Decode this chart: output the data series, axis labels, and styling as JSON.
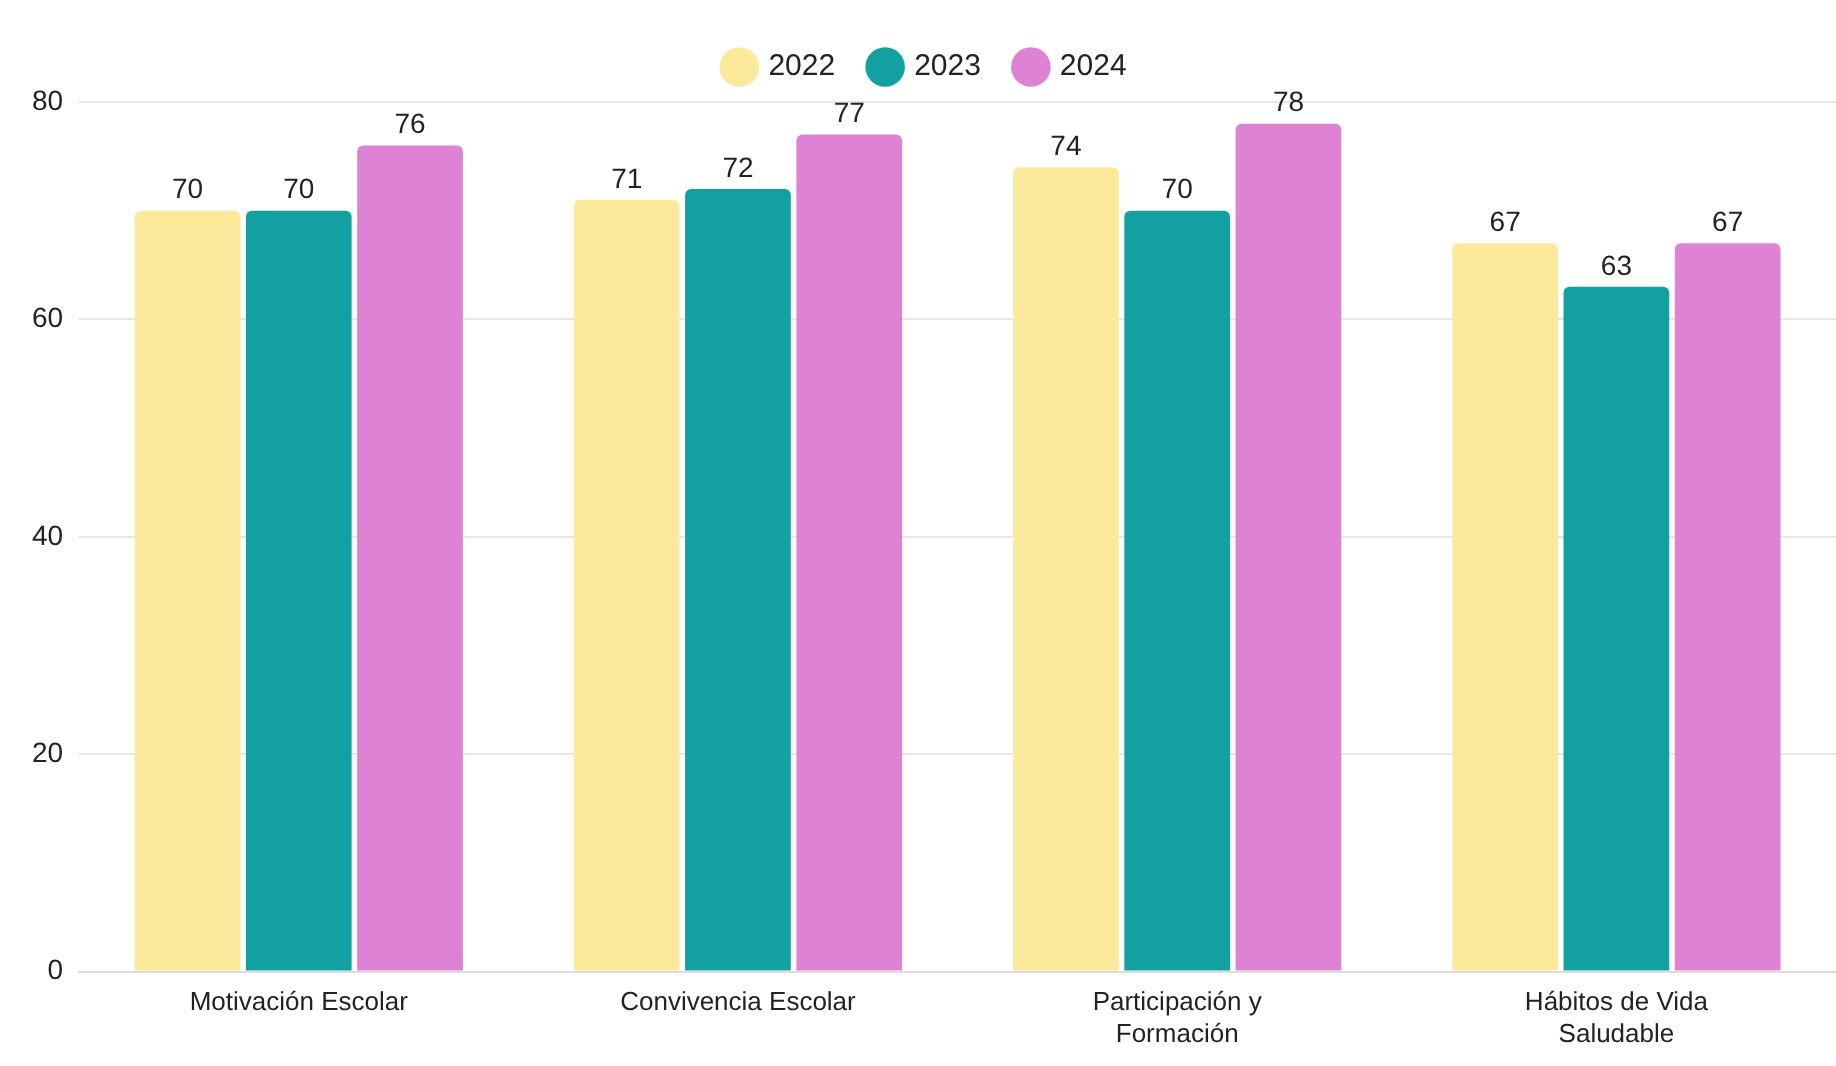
{
  "chart_data": {
    "type": "bar",
    "categories": [
      "Motivación Escolar",
      "Convivencia Escolar",
      "Participación y Formación",
      "Hábitos de Vida Saludable"
    ],
    "series": [
      {
        "name": "2022",
        "color": "#fce99b",
        "values": [
          70,
          71,
          74,
          67
        ]
      },
      {
        "name": "2023",
        "color": "#13a0a0",
        "values": [
          70,
          72,
          70,
          63
        ]
      },
      {
        "name": "2024",
        "color": "#de82d4",
        "values": [
          76,
          77,
          78,
          67
        ]
      }
    ],
    "ylim": [
      0,
      80
    ],
    "yticks": [
      0,
      20,
      40,
      60,
      80
    ],
    "grid": "y",
    "legend": "top",
    "data_labels": true
  }
}
